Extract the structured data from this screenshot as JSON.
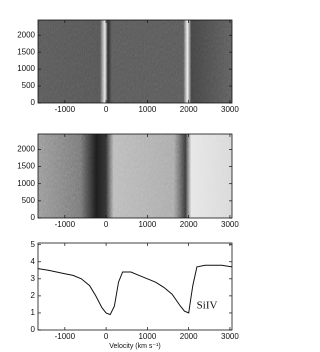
{
  "chart_data": [
    {
      "type": "image",
      "xlim": [
        -1650,
        3050
      ],
      "xticks": [
        -1000,
        0,
        1000,
        2000,
        3000
      ],
      "ylim": [
        0,
        2450
      ],
      "yticks": [
        0,
        500,
        1000,
        1500,
        2000
      ]
    },
    {
      "type": "image",
      "xlim": [
        -1650,
        3050
      ],
      "xticks": [
        -1000,
        0,
        1000,
        2000,
        3000
      ],
      "ylim": [
        0,
        2450
      ],
      "yticks": [
        0,
        500,
        1000,
        1500,
        2000
      ]
    },
    {
      "type": "line",
      "xlabel": "Velocity (km s⁻¹)",
      "annotation": "SiIV",
      "color": "#111111",
      "x": [
        -1650,
        -1400,
        -1200,
        -1000,
        -800,
        -600,
        -400,
        -250,
        -100,
        0,
        100,
        200,
        300,
        400,
        600,
        800,
        1000,
        1200,
        1400,
        1600,
        1800,
        1900,
        2000,
        2050,
        2100,
        2200,
        2400,
        2600,
        2800,
        3050
      ],
      "values": [
        3.6,
        3.5,
        3.4,
        3.3,
        3.2,
        3.0,
        2.6,
        2.0,
        1.3,
        1.0,
        0.9,
        1.4,
        2.8,
        3.4,
        3.4,
        3.2,
        3.0,
        2.8,
        2.5,
        2.1,
        1.4,
        1.1,
        1.0,
        1.8,
        2.6,
        3.7,
        3.8,
        3.8,
        3.8,
        3.7
      ],
      "xlim": [
        -1650,
        3050
      ],
      "xticks": [
        -1000,
        0,
        1000,
        2000,
        3000
      ],
      "ylim": [
        0,
        5.1
      ],
      "yticks": [
        0,
        1,
        2,
        3,
        4,
        5
      ]
    }
  ]
}
